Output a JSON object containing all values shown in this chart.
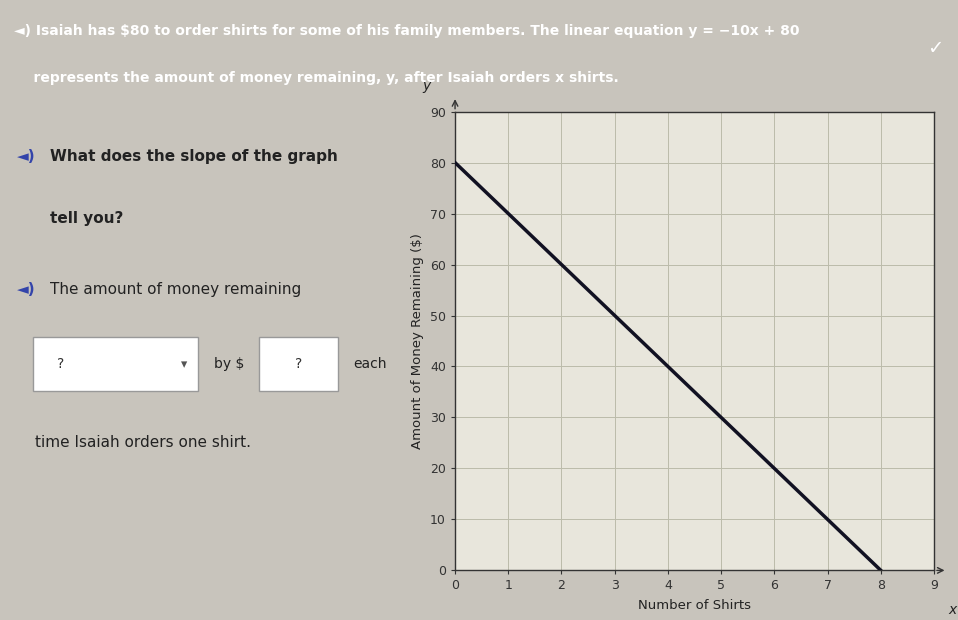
{
  "header_text_line1": "◄) Isaiah has $80 to order shirts for some of his family members. The linear equation y = −10x + 80",
  "header_text_line2": "    represents the amount of money remaining, y, after Isaiah orders x shirts.",
  "header_bg_color": "#4a54b8",
  "header_text_color": "#ffffff",
  "page_bg_color": "#c8c4bc",
  "graph_bg_color": "#e8e6dc",
  "graph_border_color": "#aaaaaa",
  "question_speaker": "◄)",
  "question_line1": "What does the slope of the graph",
  "question_line2": "tell you?",
  "sub_speaker": "◄)",
  "sub_text": "The amount of money remaining",
  "dropdown_text": "?",
  "by_text": "by $",
  "input_text": "?",
  "each_text": "each",
  "time_text": "time Isaiah orders one shirt.",
  "xlabel": "Number of Shirts",
  "ylabel": "Amount of Money Remaining ($)",
  "x_label_italic": "x",
  "y_label_italic": "y",
  "xlim": [
    0,
    9
  ],
  "ylim": [
    0,
    90
  ],
  "xticks": [
    0,
    1,
    2,
    3,
    4,
    5,
    6,
    7,
    8,
    9
  ],
  "yticks": [
    0,
    10,
    20,
    30,
    40,
    50,
    60,
    70,
    80,
    90
  ],
  "line_x": [
    0,
    8
  ],
  "line_y": [
    80,
    0
  ],
  "line_color": "#111122",
  "line_width": 2.5,
  "grid_color": "#bbbbaa",
  "axis_color": "#333333",
  "speaker_color": "#3344aa",
  "text_color": "#222222",
  "checkmark": "✓"
}
